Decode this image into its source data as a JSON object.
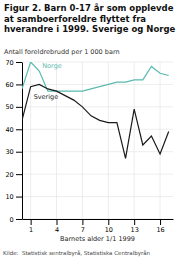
{
  "chart_data": {
    "type": "line",
    "title": "Figur 2. Barn 0-17 år som opplevde\nat samboerforeldre flyttet fra\nhverandre i 1999. Sverige og Norge",
    "subtitle": "Antall foreldrebrudd per 1 000 barn",
    "xlabel": "Barnets alder 1/1 1999",
    "source": "Kilde:  Statistisk sentralbyrå, Statistiska Centralbyrån",
    "x": [
      0,
      1,
      2,
      3,
      4,
      5,
      6,
      7,
      8,
      9,
      10,
      11,
      12,
      13,
      14,
      15,
      16,
      17
    ],
    "series": [
      {
        "name": "Norge",
        "color": "#5abab0",
        "values": [
          58,
          70,
          66,
          57,
          57,
          57,
          57,
          57,
          58,
          59,
          60,
          61,
          61,
          62,
          62,
          68,
          65,
          64
        ]
      },
      {
        "name": "Sverige",
        "color": "#1a1a1a",
        "values": [
          44,
          59,
          60,
          58,
          57,
          55,
          53,
          50,
          46,
          44,
          43,
          43,
          27,
          49,
          33,
          37,
          29,
          39
        ]
      }
    ],
    "xlim": [
      0,
      17.5
    ],
    "xticks": [
      1,
      4,
      7,
      10,
      13,
      16
    ],
    "ylim": [
      0,
      70
    ],
    "yticks": [
      0,
      10,
      20,
      30,
      40,
      50,
      60,
      70
    ],
    "grid": true
  }
}
